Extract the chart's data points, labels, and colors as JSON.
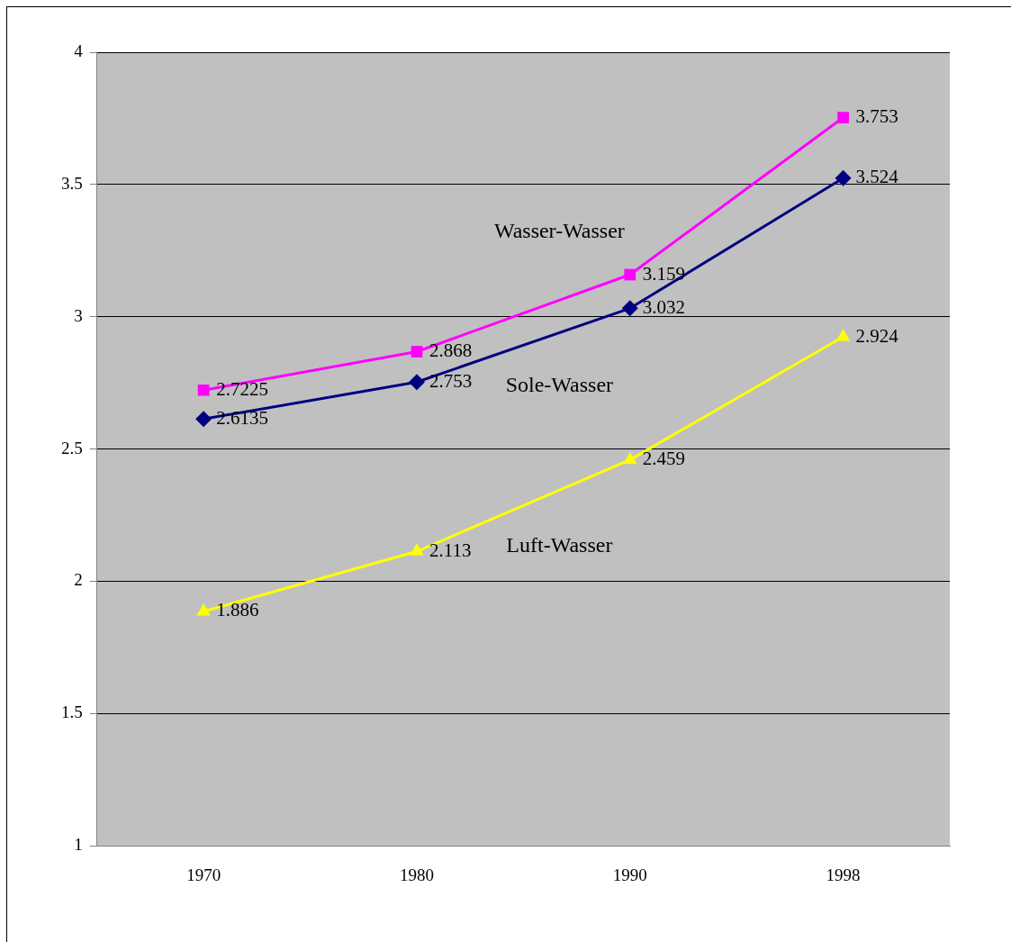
{
  "chart_data": {
    "type": "line",
    "categories": [
      "1970",
      "1980",
      "1990",
      "1998"
    ],
    "series": [
      {
        "name": "Wasser-Wasser",
        "color": "#ff00ff",
        "marker": "square",
        "values": [
          2.7225,
          2.868,
          3.159,
          3.753
        ]
      },
      {
        "name": "Sole-Wasser",
        "color": "#000080",
        "marker": "diamond",
        "values": [
          2.6135,
          2.753,
          3.032,
          3.524
        ]
      },
      {
        "name": "Luft-Wasser",
        "color": "#ffff00",
        "marker": "triangle",
        "values": [
          1.886,
          2.113,
          2.459,
          2.924
        ]
      }
    ],
    "ylim": [
      1,
      4
    ],
    "yticks": [
      1,
      1.5,
      2,
      2.5,
      3,
      3.5,
      4
    ],
    "grid": "y",
    "legend": false,
    "data_labels": true,
    "line_style": "solid"
  }
}
